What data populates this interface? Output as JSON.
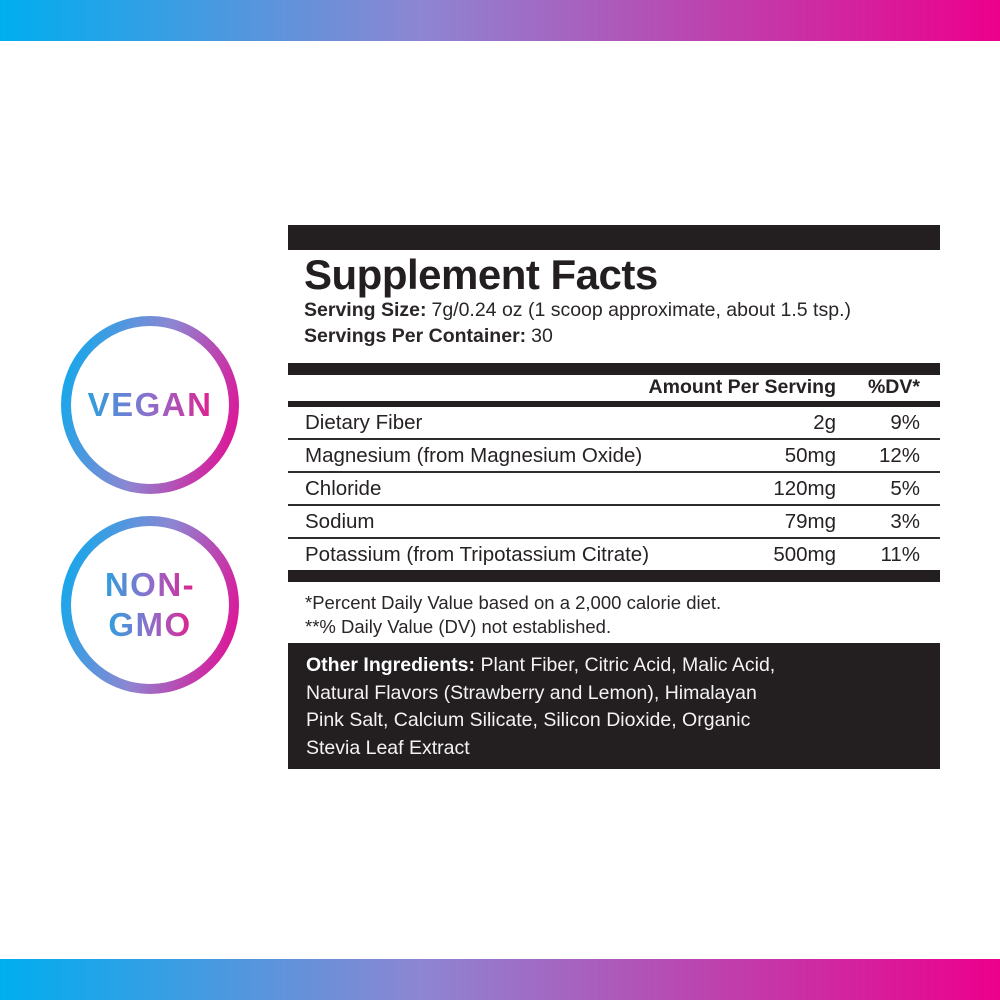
{
  "colors": {
    "gradient_start": "#00aeef",
    "gradient_mid": "#8d86d2",
    "gradient_end": "#ec008c",
    "panel_ink": "#231f20"
  },
  "badges": {
    "vegan": {
      "label": "VEGAN"
    },
    "non_gmo": {
      "line1": "NON-",
      "line2": "GMO"
    }
  },
  "panel": {
    "title": "Supplement Facts",
    "serving_size_label": "Serving Size:",
    "serving_size_value": "7g/0.24 oz (1 scoop approximate, about 1.5 tsp.)",
    "servings_label": "Servings Per Container:",
    "servings_value": "30",
    "table": {
      "amount_header": "Amount Per Serving",
      "dv_header": "%DV*",
      "rows": [
        {
          "name": "Dietary Fiber",
          "amount": "2g",
          "dv": "9%"
        },
        {
          "name": "Magnesium (from Magnesium Oxide)",
          "amount": "50mg",
          "dv": "12%"
        },
        {
          "name": "Chloride",
          "amount": "120mg",
          "dv": "5%"
        },
        {
          "name": "Sodium",
          "amount": "79mg",
          "dv": "3%"
        },
        {
          "name": "Potassium (from Tripotassium Citrate)",
          "amount": "500mg",
          "dv": "11%"
        }
      ]
    },
    "footnotes": [
      "*Percent Daily Value based on a 2,000 calorie diet.",
      "**% Daily Value (DV) not established."
    ],
    "other_ingredients": {
      "label": "Other Ingredients:",
      "line1_rest": " Plant Fiber, Citric Acid, Malic Acid,",
      "lines": [
        "Natural Flavors (Strawberry and Lemon), Himalayan",
        "Pink Salt, Calcium Silicate, Silicon Dioxide, Organic",
        "Stevia Leaf Extract"
      ]
    }
  }
}
